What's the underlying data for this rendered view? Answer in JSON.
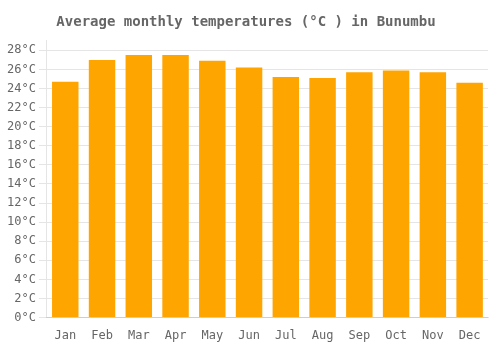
{
  "chart_data": {
    "type": "bar",
    "title": "Average monthly temperatures (°C ) in Bunumbu",
    "categories": [
      "Jan",
      "Feb",
      "Mar",
      "Apr",
      "May",
      "Jun",
      "Jul",
      "Aug",
      "Sep",
      "Oct",
      "Nov",
      "Dec"
    ],
    "values": [
      24.7,
      27.0,
      27.5,
      27.5,
      26.9,
      26.2,
      25.2,
      25.1,
      25.7,
      25.9,
      25.7,
      24.6
    ],
    "color": "#FFA500",
    "ylim": [
      0,
      29
    ],
    "yticks": [
      {
        "value": 0,
        "label": "0°C"
      },
      {
        "value": 2,
        "label": "2°C"
      },
      {
        "value": 4,
        "label": "4°C"
      },
      {
        "value": 6,
        "label": "6°C"
      },
      {
        "value": 8,
        "label": "8°C"
      },
      {
        "value": 10,
        "label": "10°C"
      },
      {
        "value": 12,
        "label": "12°C"
      },
      {
        "value": 14,
        "label": "14°C"
      },
      {
        "value": 16,
        "label": "16°C"
      },
      {
        "value": 18,
        "label": "18°C"
      },
      {
        "value": 20,
        "label": "20°C"
      },
      {
        "value": 22,
        "label": "22°C"
      },
      {
        "value": 24,
        "label": "24°C"
      },
      {
        "value": 26,
        "label": "26°C"
      },
      {
        "value": 28,
        "label": "28°C"
      }
    ],
    "grid": true
  }
}
